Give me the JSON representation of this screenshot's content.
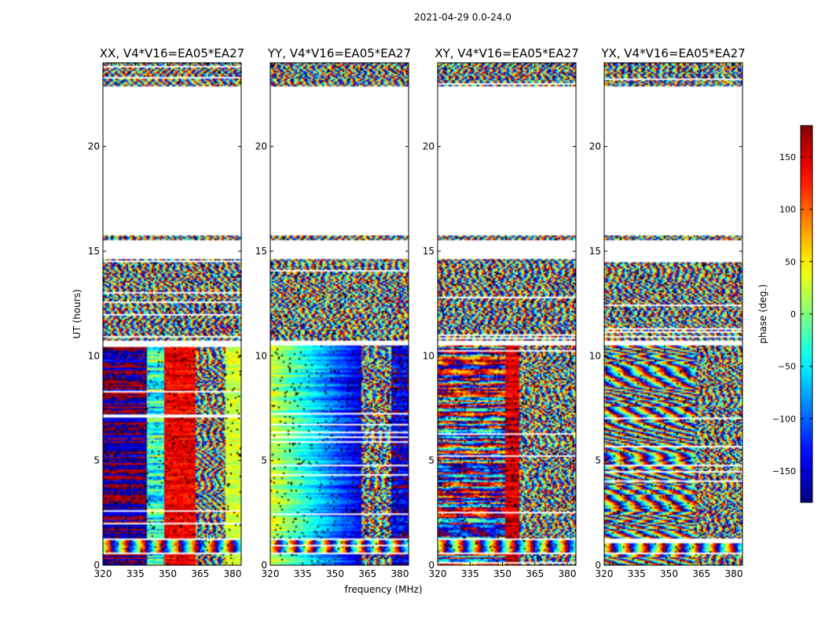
{
  "figure_title": "2021-04-29 0.0-24.0",
  "chart_data": {
    "type": "heatmap",
    "title": "2021-04-29 0.0-24.0",
    "xlabel": "frequency (MHz)",
    "ylabel": "UT (hours)",
    "xlim": [
      320,
      384
    ],
    "ylim": [
      0,
      24
    ],
    "x_ticks": [
      320,
      335,
      350,
      365,
      380
    ],
    "y_ticks": [
      0,
      5,
      10,
      15,
      20
    ],
    "panels": [
      {
        "name": "XX",
        "title": "XX, V4*V16=EA05*EA27",
        "style": "xx"
      },
      {
        "name": "YY",
        "title": "YY, V4*V16=EA05*EA27",
        "style": "yy"
      },
      {
        "name": "XY",
        "title": "XY, V4*V16=EA05*EA27",
        "style": "xy"
      },
      {
        "name": "YX",
        "title": "YX, V4*V16=EA05*EA27",
        "style": "yx"
      }
    ],
    "data_segments_hours": [
      [
        0.0,
        0.5
      ],
      [
        0.6,
        1.2
      ],
      [
        1.25,
        3.5
      ],
      [
        3.55,
        10.5
      ],
      [
        10.7,
        14.6
      ],
      [
        15.5,
        15.75
      ],
      [
        22.9,
        24.0
      ]
    ],
    "colorbar": {
      "label": "phase (deg.)",
      "range": [
        -180,
        180
      ],
      "ticks": [
        -150,
        -100,
        -50,
        0,
        50,
        100,
        150
      ],
      "tick_labels": [
        "−150",
        "−100",
        "−50",
        "0",
        "50",
        "100",
        "150"
      ],
      "colormap": "jet"
    }
  }
}
